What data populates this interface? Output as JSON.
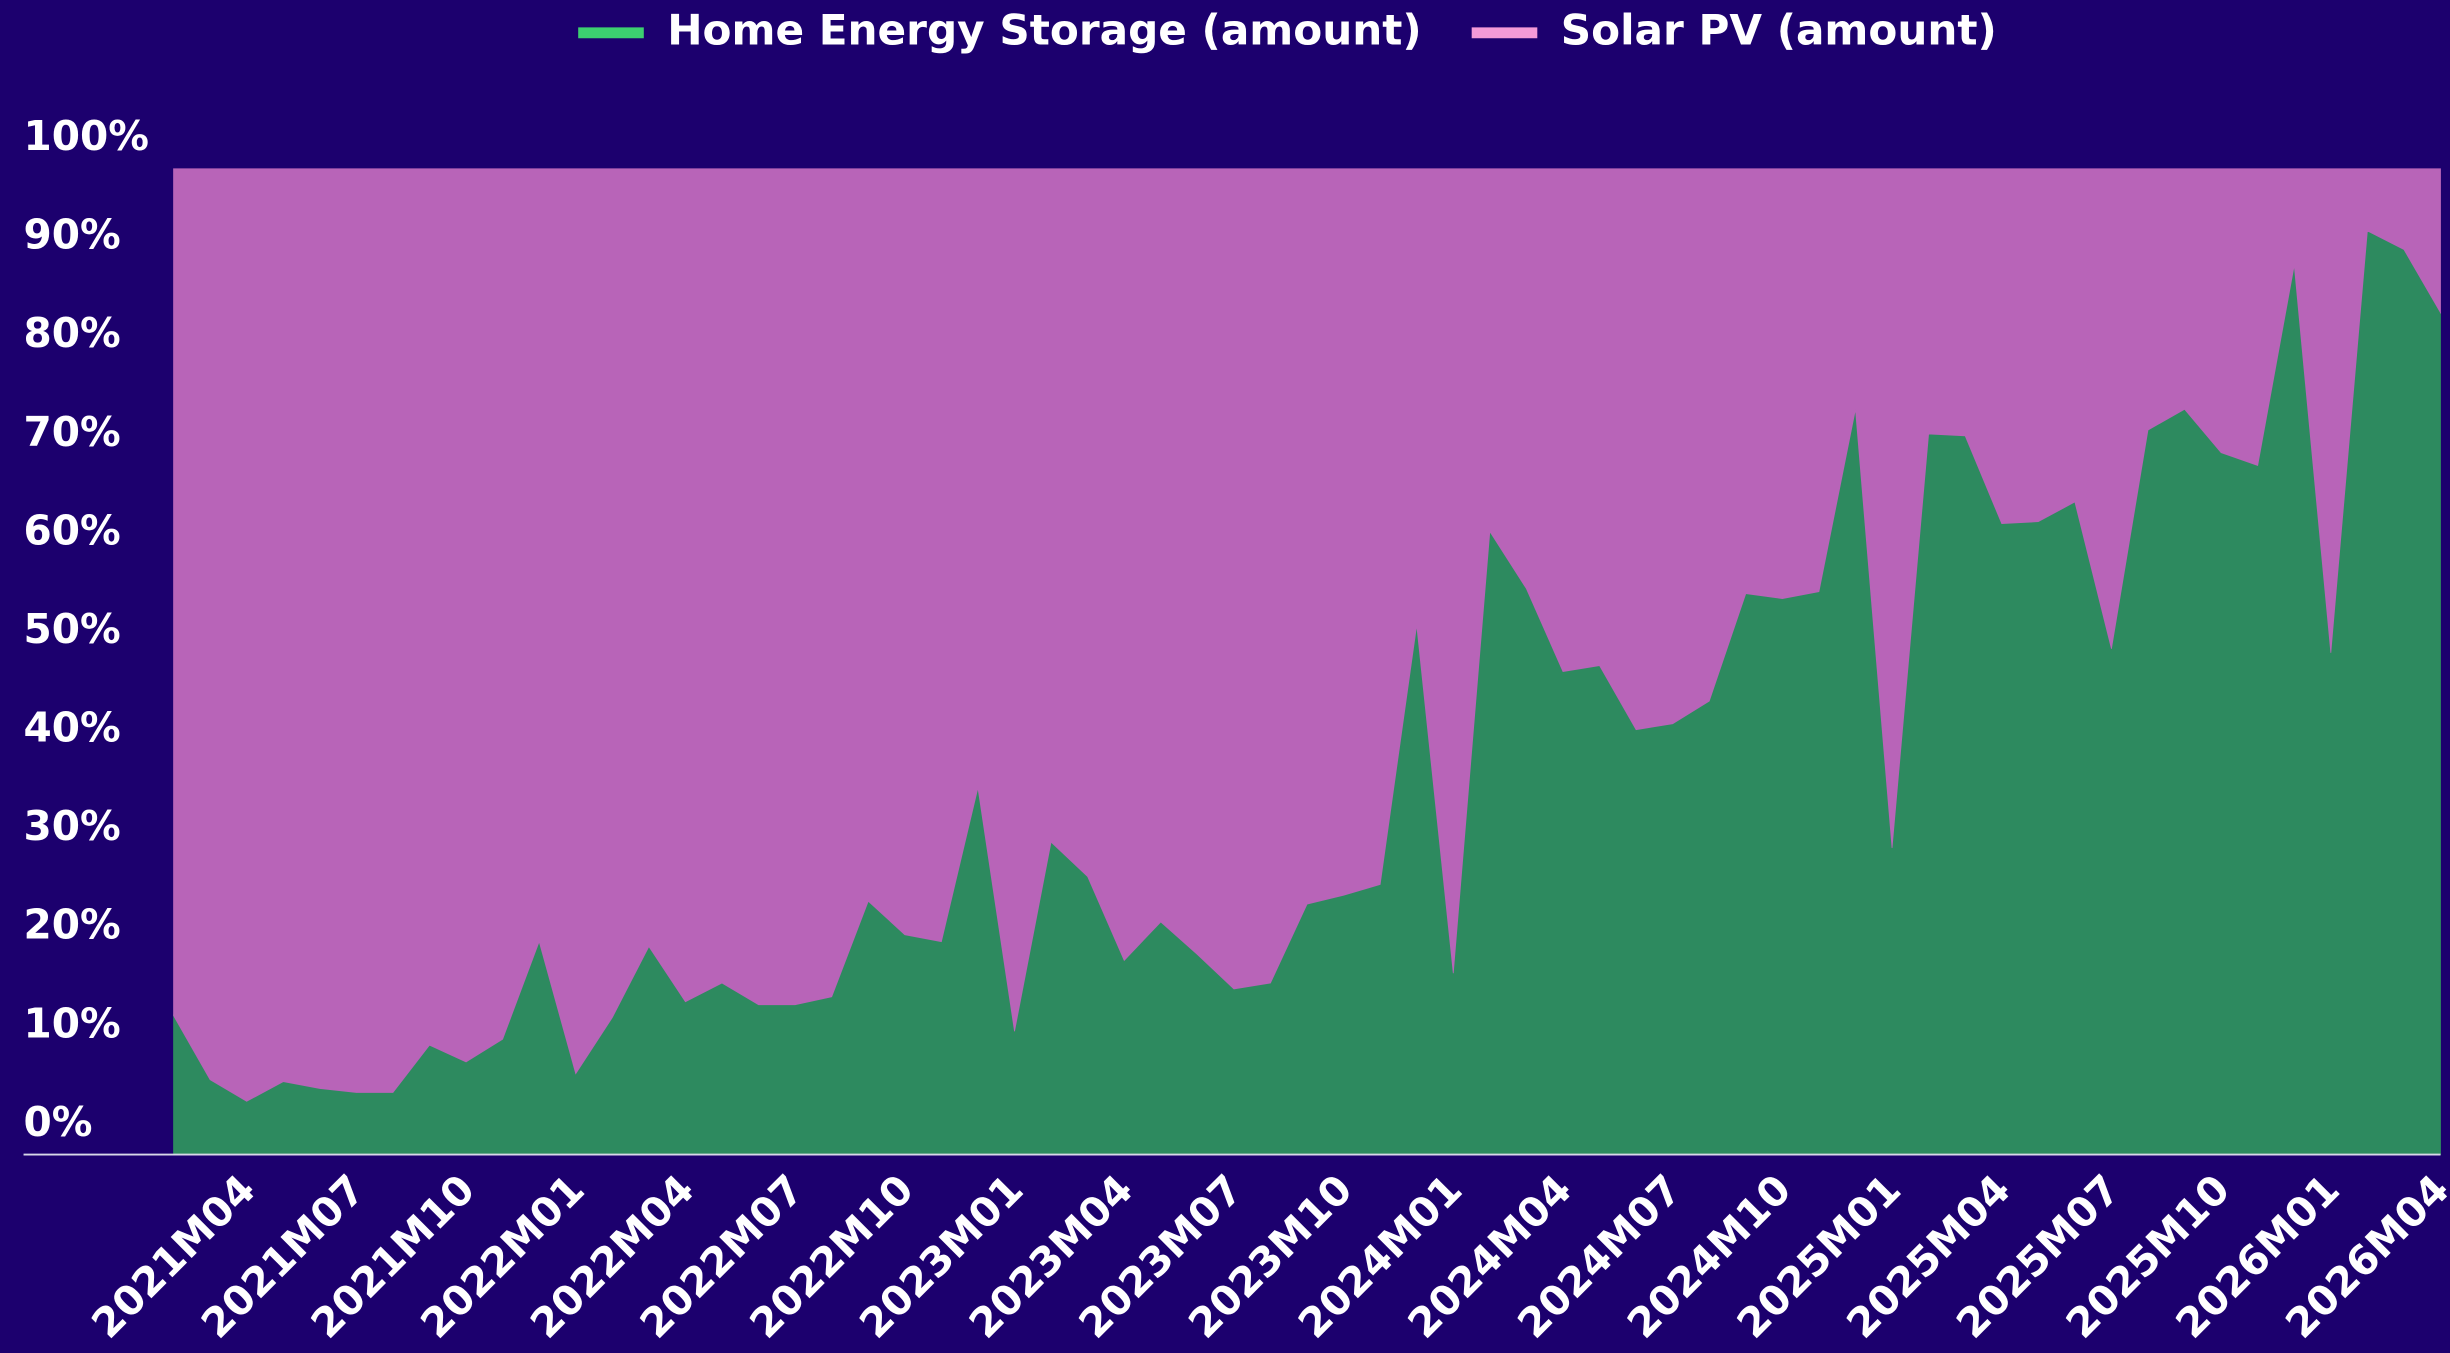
{
  "chart_data": {
    "type": "stacked_area_percent",
    "categories": [
      null,
      null,
      "2021M04",
      null,
      null,
      "2021M07",
      null,
      null,
      "2021M10",
      null,
      null,
      "2022M01",
      null,
      null,
      "2022M04",
      null,
      null,
      "2022M07",
      null,
      null,
      "2022M10",
      null,
      null,
      "2023M01",
      null,
      null,
      "2023M04",
      null,
      null,
      "2023M07",
      null,
      null,
      "2023M10",
      null,
      null,
      "2024M01",
      null,
      null,
      "2024M04",
      null,
      null,
      "2024M07",
      null,
      null,
      "2024M10",
      null,
      null,
      "2025M01",
      null,
      null,
      "2025M04",
      null,
      null,
      "2025M07",
      null,
      null,
      "2025M10",
      null,
      null,
      "2026M01",
      null,
      null,
      "2026M04"
    ],
    "series": [
      {
        "name": "Home Energy Storage (amount)",
        "color": "#2d8a5f",
        "legend_color": "#3ccf70",
        "values": [
          14.1,
          7.6,
          5.4,
          7.4,
          6.7,
          6.3,
          6.3,
          11.1,
          9.4,
          11.7,
          21.6,
          8.2,
          13.9,
          21.1,
          15.5,
          17.4,
          15.2,
          15.2,
          16.0,
          25.7,
          22.3,
          21.6,
          37.2,
          12.5,
          31.7,
          28.2,
          19.7,
          23.6,
          20.3,
          16.8,
          17.4,
          25.4,
          26.3,
          27.4,
          53.7,
          18.4,
          63.2,
          57.4,
          49.0,
          49.6,
          43.1,
          43.7,
          46.0,
          56.9,
          56.4,
          57.1,
          75.6,
          31.1,
          73.1,
          72.9,
          64.0,
          64.2,
          66.2,
          51.3,
          73.5,
          75.6,
          71.2,
          69.9,
          90.2,
          50.9,
          93.7,
          91.8,
          85.4
        ]
      },
      {
        "name": "Solar PV (amount)",
        "color": "#b864b8",
        "legend_color": "#f49ad8",
        "values": [
          85.9,
          92.4,
          94.6,
          92.6,
          93.3,
          93.7,
          93.7,
          88.9,
          90.6,
          88.3,
          78.4,
          91.8,
          86.1,
          78.9,
          84.5,
          82.6,
          84.8,
          84.8,
          84.0,
          74.3,
          77.7,
          78.4,
          62.8,
          87.5,
          68.3,
          71.8,
          80.3,
          76.4,
          79.7,
          83.2,
          82.6,
          74.6,
          73.7,
          72.6,
          46.3,
          81.6,
          36.8,
          42.6,
          51.0,
          50.4,
          56.9,
          56.3,
          54.0,
          43.1,
          43.6,
          42.9,
          24.4,
          68.9,
          26.9,
          27.1,
          36.0,
          35.8,
          33.8,
          48.7,
          26.5,
          24.4,
          28.8,
          30.1,
          9.8,
          49.1,
          6.3,
          8.2,
          14.6
        ]
      }
    ],
    "ylim": [
      0,
      100
    ],
    "yticks": [
      {
        "value": 0,
        "label": "0%"
      },
      {
        "value": 10,
        "label": "10%"
      },
      {
        "value": 20,
        "label": "20%"
      },
      {
        "value": 30,
        "label": "30%"
      },
      {
        "value": 40,
        "label": "40%"
      },
      {
        "value": 50,
        "label": "50%"
      },
      {
        "value": 60,
        "label": "60%"
      },
      {
        "value": 70,
        "label": "70%"
      },
      {
        "value": 80,
        "label": "80%"
      },
      {
        "value": 90,
        "label": "90%"
      },
      {
        "value": 100,
        "label": "100%"
      }
    ],
    "legend_position": "top"
  }
}
